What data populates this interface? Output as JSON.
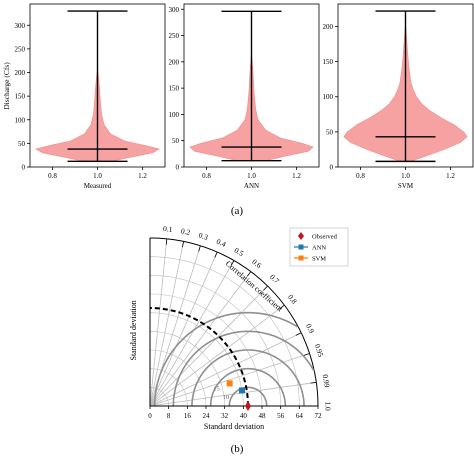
{
  "chart_data": [
    {
      "type": "violin",
      "panel": "(a)",
      "ylabel": "Discharge (Cfs)",
      "x_ticks": [
        "0.8",
        "1.0",
        "1.2"
      ],
      "violins": [
        {
          "name": "Measured",
          "position": 1.0,
          "min": 12,
          "median": 38,
          "max": 330,
          "ylim": [
            0,
            345
          ],
          "y_ticks": [
            0,
            50,
            100,
            150,
            200,
            250,
            300
          ],
          "density": [
            [
              12,
              0.22
            ],
            [
              20,
              0.48
            ],
            [
              30,
              0.85
            ],
            [
              38,
              0.95
            ],
            [
              45,
              0.75
            ],
            [
              55,
              0.42
            ],
            [
              70,
              0.2
            ],
            [
              90,
              0.1
            ],
            [
              110,
              0.065
            ],
            [
              130,
              0.05
            ],
            [
              150,
              0.04
            ],
            [
              170,
              0.03
            ],
            [
              190,
              0.015
            ],
            [
              200,
              0.008
            ],
            [
              210,
              0
            ]
          ]
        },
        {
          "name": "ANN",
          "position": 1.0,
          "min": 12,
          "median": 38,
          "max": 296,
          "ylim": [
            0,
            310
          ],
          "y_ticks": [
            0,
            50,
            100,
            150,
            200,
            250,
            300
          ],
          "density": [
            [
              12,
              0.22
            ],
            [
              20,
              0.5
            ],
            [
              30,
              0.88
            ],
            [
              38,
              0.95
            ],
            [
              45,
              0.78
            ],
            [
              55,
              0.45
            ],
            [
              70,
              0.22
            ],
            [
              90,
              0.1
            ],
            [
              110,
              0.065
            ],
            [
              130,
              0.05
            ],
            [
              150,
              0.035
            ],
            [
              170,
              0.028
            ],
            [
              190,
              0.018
            ],
            [
              205,
              0.008
            ],
            [
              215,
              0
            ]
          ]
        },
        {
          "name": "SVM",
          "position": 1.0,
          "min": 8,
          "median": 43,
          "max": 222,
          "ylim": [
            0,
            232
          ],
          "y_ticks": [
            0,
            50,
            100,
            150,
            200
          ],
          "density": [
            [
              8,
              0.08
            ],
            [
              15,
              0.3
            ],
            [
              25,
              0.6
            ],
            [
              35,
              0.85
            ],
            [
              43,
              0.95
            ],
            [
              50,
              0.9
            ],
            [
              60,
              0.75
            ],
            [
              70,
              0.55
            ],
            [
              80,
              0.38
            ],
            [
              90,
              0.25
            ],
            [
              100,
              0.17
            ],
            [
              110,
              0.12
            ],
            [
              120,
              0.085
            ],
            [
              140,
              0.055
            ],
            [
              160,
              0.035
            ],
            [
              180,
              0.02
            ],
            [
              195,
              0.008
            ],
            [
              205,
              0
            ]
          ]
        }
      ]
    },
    {
      "type": "taylor",
      "panel": "(b)",
      "xlabel": "Standard deviation",
      "ylabel": "Standard deviation",
      "arc_label": "Correlation coefficient",
      "std_max": 72,
      "std_ticks": [
        0,
        8,
        16,
        24,
        32,
        40,
        48,
        56,
        64,
        72
      ],
      "correlation_ticks": [
        "0.1",
        "0.2",
        "0.3",
        "0.4",
        "0.5",
        "0.6",
        "0.7",
        "0.8",
        "0.9",
        "0.95",
        "0.99",
        "1.0"
      ],
      "reference_std": 42,
      "rms_contours": [
        8,
        16,
        24,
        32,
        40
      ],
      "rms_contour_labels": [
        "10",
        "15"
      ],
      "legend": [
        {
          "name": "Observed",
          "color": "#c0141c",
          "marker": "diamond"
        },
        {
          "name": "ANN",
          "color": "#1f77b4",
          "marker": "square"
        },
        {
          "name": "SVM",
          "color": "#ff7f0e",
          "marker": "square"
        }
      ],
      "points": [
        {
          "name": "Observed",
          "std": 42,
          "corr": 1.0
        },
        {
          "name": "ANN",
          "std": 40,
          "corr": 0.986
        },
        {
          "name": "SVM",
          "std": 35.5,
          "corr": 0.962
        }
      ]
    }
  ],
  "captions": {
    "a": "(a)",
    "b": "(b)"
  },
  "colors": {
    "violin_fill": "#f7a2a2",
    "violin_edge": "#f08c8c",
    "grid_gray": "#bdbdbd",
    "contour_gray": "#8f8f8f"
  }
}
